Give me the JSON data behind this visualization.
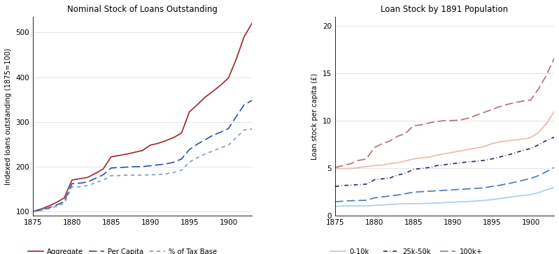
{
  "left_title": "Nominal Stock of Loans Outstanding",
  "left_ylabel": "Indexed loans outstanding (1875=100)",
  "right_title": "Loan Stock by 1891 Population",
  "right_ylabel": "Loan stock per capita (£)",
  "years": [
    1875,
    1876,
    1877,
    1878,
    1879,
    1880,
    1881,
    1882,
    1883,
    1884,
    1885,
    1886,
    1887,
    1888,
    1889,
    1890,
    1891,
    1892,
    1893,
    1894,
    1895,
    1896,
    1897,
    1898,
    1899,
    1900,
    1901,
    1902,
    1903
  ],
  "aggregate": [
    100,
    105,
    112,
    120,
    130,
    170,
    173,
    176,
    185,
    195,
    222,
    225,
    228,
    232,
    236,
    248,
    252,
    258,
    265,
    275,
    322,
    338,
    355,
    368,
    382,
    398,
    440,
    490,
    520
  ],
  "per_capita": [
    100,
    103,
    108,
    114,
    122,
    162,
    163,
    166,
    174,
    182,
    197,
    198,
    199,
    200,
    200,
    202,
    204,
    206,
    210,
    217,
    238,
    250,
    260,
    270,
    277,
    285,
    312,
    338,
    348
  ],
  "tax_base": [
    100,
    102,
    106,
    111,
    118,
    155,
    155,
    158,
    164,
    170,
    180,
    180,
    181,
    181,
    181,
    182,
    182,
    184,
    187,
    192,
    210,
    220,
    228,
    235,
    242,
    248,
    265,
    282,
    284
  ],
  "pop_0_10k": [
    1.0,
    1.05,
    1.05,
    1.05,
    1.05,
    1.1,
    1.15,
    1.2,
    1.25,
    1.28,
    1.3,
    1.3,
    1.32,
    1.35,
    1.4,
    1.44,
    1.48,
    1.52,
    1.57,
    1.62,
    1.72,
    1.82,
    1.94,
    2.05,
    2.15,
    2.25,
    2.45,
    2.75,
    3.0
  ],
  "pop_10_25k": [
    1.5,
    1.55,
    1.6,
    1.62,
    1.65,
    1.9,
    2.0,
    2.1,
    2.2,
    2.35,
    2.5,
    2.55,
    2.6,
    2.65,
    2.7,
    2.75,
    2.8,
    2.85,
    2.9,
    2.95,
    3.1,
    3.22,
    3.38,
    3.56,
    3.75,
    3.95,
    4.25,
    4.65,
    5.1
  ],
  "pop_25_50k": [
    3.1,
    3.2,
    3.25,
    3.3,
    3.35,
    3.8,
    3.9,
    4.0,
    4.3,
    4.5,
    4.9,
    5.0,
    5.1,
    5.3,
    5.4,
    5.5,
    5.6,
    5.7,
    5.75,
    5.85,
    6.0,
    6.2,
    6.4,
    6.65,
    6.9,
    7.1,
    7.5,
    7.95,
    8.3
  ],
  "pop_50_100k": [
    5.0,
    5.0,
    5.0,
    5.1,
    5.2,
    5.3,
    5.35,
    5.5,
    5.6,
    5.8,
    6.0,
    6.1,
    6.2,
    6.4,
    6.55,
    6.7,
    6.85,
    7.0,
    7.15,
    7.3,
    7.6,
    7.8,
    7.9,
    8.0,
    8.1,
    8.25,
    8.8,
    9.7,
    11.0
  ],
  "pop_100kp": [
    5.1,
    5.3,
    5.5,
    5.85,
    6.0,
    7.2,
    7.6,
    7.9,
    8.4,
    8.7,
    9.5,
    9.6,
    9.8,
    9.95,
    10.05,
    10.05,
    10.1,
    10.3,
    10.6,
    10.9,
    11.2,
    11.5,
    11.75,
    11.95,
    12.1,
    12.2,
    13.4,
    14.8,
    16.6
  ],
  "agg_color": "#9b2626",
  "per_capita_color": "#2a52a0",
  "tax_base_color": "#7898c8",
  "color_0_10k": "#aacce8",
  "color_10_25k": "#4878b8",
  "color_25_50k": "#1c3060",
  "color_50_100k": "#e8b8aa",
  "color_100kp": "#b07070"
}
